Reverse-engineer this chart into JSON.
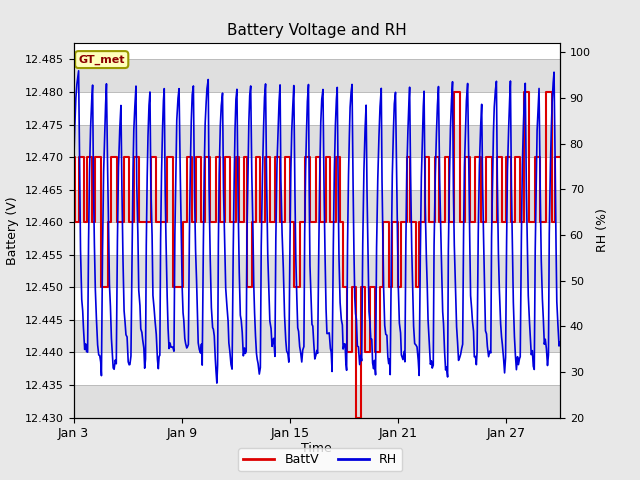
{
  "title": "Battery Voltage and RH",
  "xlabel": "Time",
  "ylabel_left": "Battery (V)",
  "ylabel_right": "RH (%)",
  "annotation_text": "GT_met",
  "xlim_start": 0,
  "xlim_end": 27,
  "ylim_left": [
    12.43,
    12.4875
  ],
  "ylim_right": [
    20,
    102
  ],
  "xtick_positions": [
    0,
    6,
    12,
    18,
    24
  ],
  "xtick_labels": [
    "Jan 3",
    "Jan 9",
    "Jan 15",
    "Jan 21",
    "Jan 27"
  ],
  "ytick_left": [
    12.43,
    12.435,
    12.44,
    12.445,
    12.45,
    12.455,
    12.46,
    12.465,
    12.47,
    12.475,
    12.48,
    12.485
  ],
  "ytick_right": [
    20,
    30,
    40,
    50,
    60,
    70,
    80,
    90,
    100
  ],
  "bg_color": "#e8e8e8",
  "plot_bg_color": "#ffffff",
  "grid_color": "#bbbbbb",
  "band_color": "#d8d8d8",
  "batt_color": "#dd0000",
  "rh_color": "#0000dd",
  "legend_batt": "BattV",
  "legend_rh": "RH",
  "figsize": [
    6.4,
    4.8
  ],
  "dpi": 100,
  "batt_data": [
    [
      0.0,
      12.47
    ],
    [
      0.05,
      12.47
    ],
    [
      0.05,
      12.46
    ],
    [
      0.3,
      12.46
    ],
    [
      0.3,
      12.47
    ],
    [
      0.55,
      12.47
    ],
    [
      0.55,
      12.46
    ],
    [
      0.75,
      12.46
    ],
    [
      0.75,
      12.47
    ],
    [
      1.0,
      12.47
    ],
    [
      1.0,
      12.46
    ],
    [
      1.2,
      12.46
    ],
    [
      1.2,
      12.47
    ],
    [
      1.5,
      12.47
    ],
    [
      1.5,
      12.45
    ],
    [
      1.9,
      12.45
    ],
    [
      1.9,
      12.46
    ],
    [
      2.1,
      12.46
    ],
    [
      2.1,
      12.47
    ],
    [
      2.4,
      12.47
    ],
    [
      2.4,
      12.46
    ],
    [
      2.8,
      12.46
    ],
    [
      2.8,
      12.47
    ],
    [
      3.05,
      12.47
    ],
    [
      3.05,
      12.46
    ],
    [
      3.35,
      12.46
    ],
    [
      3.35,
      12.47
    ],
    [
      3.65,
      12.47
    ],
    [
      3.65,
      12.46
    ],
    [
      4.3,
      12.46
    ],
    [
      4.3,
      12.47
    ],
    [
      4.6,
      12.47
    ],
    [
      4.6,
      12.46
    ],
    [
      5.2,
      12.46
    ],
    [
      5.2,
      12.47
    ],
    [
      5.5,
      12.47
    ],
    [
      5.5,
      12.45
    ],
    [
      6.1,
      12.45
    ],
    [
      6.1,
      12.46
    ],
    [
      6.3,
      12.46
    ],
    [
      6.3,
      12.47
    ],
    [
      6.55,
      12.47
    ],
    [
      6.55,
      12.46
    ],
    [
      6.8,
      12.46
    ],
    [
      6.8,
      12.47
    ],
    [
      7.05,
      12.47
    ],
    [
      7.05,
      12.46
    ],
    [
      7.3,
      12.46
    ],
    [
      7.3,
      12.47
    ],
    [
      7.55,
      12.47
    ],
    [
      7.55,
      12.46
    ],
    [
      7.9,
      12.46
    ],
    [
      7.9,
      12.47
    ],
    [
      8.15,
      12.47
    ],
    [
      8.15,
      12.46
    ],
    [
      8.4,
      12.46
    ],
    [
      8.4,
      12.47
    ],
    [
      8.7,
      12.47
    ],
    [
      8.7,
      12.46
    ],
    [
      9.0,
      12.46
    ],
    [
      9.0,
      12.47
    ],
    [
      9.2,
      12.47
    ],
    [
      9.2,
      12.46
    ],
    [
      9.45,
      12.46
    ],
    [
      9.45,
      12.47
    ],
    [
      9.65,
      12.47
    ],
    [
      9.65,
      12.45
    ],
    [
      9.9,
      12.45
    ],
    [
      9.9,
      12.46
    ],
    [
      10.1,
      12.46
    ],
    [
      10.1,
      12.47
    ],
    [
      10.35,
      12.47
    ],
    [
      10.35,
      12.46
    ],
    [
      10.65,
      12.46
    ],
    [
      10.65,
      12.47
    ],
    [
      10.9,
      12.47
    ],
    [
      10.9,
      12.46
    ],
    [
      11.2,
      12.46
    ],
    [
      11.2,
      12.47
    ],
    [
      11.45,
      12.47
    ],
    [
      11.45,
      12.46
    ],
    [
      11.75,
      12.46
    ],
    [
      11.75,
      12.47
    ],
    [
      12.0,
      12.47
    ],
    [
      12.0,
      12.46
    ],
    [
      12.25,
      12.46
    ],
    [
      12.25,
      12.45
    ],
    [
      12.55,
      12.45
    ],
    [
      12.55,
      12.46
    ],
    [
      12.85,
      12.46
    ],
    [
      12.85,
      12.47
    ],
    [
      13.1,
      12.47
    ],
    [
      13.1,
      12.46
    ],
    [
      13.45,
      12.46
    ],
    [
      13.45,
      12.47
    ],
    [
      13.7,
      12.47
    ],
    [
      13.7,
      12.46
    ],
    [
      14.0,
      12.46
    ],
    [
      14.0,
      12.47
    ],
    [
      14.25,
      12.47
    ],
    [
      14.25,
      12.46
    ],
    [
      14.55,
      12.46
    ],
    [
      14.55,
      12.47
    ],
    [
      14.8,
      12.47
    ],
    [
      14.8,
      12.46
    ],
    [
      14.95,
      12.46
    ],
    [
      14.95,
      12.45
    ],
    [
      15.15,
      12.45
    ],
    [
      15.15,
      12.44
    ],
    [
      15.45,
      12.44
    ],
    [
      15.45,
      12.45
    ],
    [
      15.65,
      12.45
    ],
    [
      15.65,
      12.43
    ],
    [
      15.95,
      12.43
    ],
    [
      15.95,
      12.45
    ],
    [
      16.15,
      12.45
    ],
    [
      16.15,
      12.44
    ],
    [
      16.45,
      12.44
    ],
    [
      16.45,
      12.45
    ],
    [
      16.75,
      12.45
    ],
    [
      16.75,
      12.44
    ],
    [
      17.0,
      12.44
    ],
    [
      17.0,
      12.45
    ],
    [
      17.2,
      12.45
    ],
    [
      17.2,
      12.46
    ],
    [
      17.5,
      12.46
    ],
    [
      17.5,
      12.45
    ],
    [
      17.7,
      12.45
    ],
    [
      17.7,
      12.46
    ],
    [
      18.0,
      12.46
    ],
    [
      18.0,
      12.45
    ],
    [
      18.2,
      12.45
    ],
    [
      18.2,
      12.46
    ],
    [
      18.5,
      12.46
    ],
    [
      18.5,
      12.47
    ],
    [
      18.7,
      12.47
    ],
    [
      18.7,
      12.46
    ],
    [
      19.0,
      12.46
    ],
    [
      19.0,
      12.45
    ],
    [
      19.2,
      12.45
    ],
    [
      19.2,
      12.46
    ],
    [
      19.5,
      12.46
    ],
    [
      19.5,
      12.47
    ],
    [
      19.75,
      12.47
    ],
    [
      19.75,
      12.46
    ],
    [
      20.05,
      12.46
    ],
    [
      20.05,
      12.47
    ],
    [
      20.3,
      12.47
    ],
    [
      20.3,
      12.46
    ],
    [
      20.6,
      12.46
    ],
    [
      20.6,
      12.47
    ],
    [
      20.85,
      12.47
    ],
    [
      20.85,
      12.46
    ],
    [
      21.1,
      12.46
    ],
    [
      21.1,
      12.48
    ],
    [
      21.45,
      12.48
    ],
    [
      21.45,
      12.46
    ],
    [
      21.75,
      12.46
    ],
    [
      21.75,
      12.47
    ],
    [
      22.0,
      12.47
    ],
    [
      22.0,
      12.46
    ],
    [
      22.3,
      12.46
    ],
    [
      22.3,
      12.47
    ],
    [
      22.6,
      12.47
    ],
    [
      22.6,
      12.46
    ],
    [
      22.9,
      12.46
    ],
    [
      22.9,
      12.47
    ],
    [
      23.2,
      12.47
    ],
    [
      23.2,
      12.46
    ],
    [
      23.5,
      12.46
    ],
    [
      23.5,
      12.47
    ],
    [
      23.8,
      12.47
    ],
    [
      23.8,
      12.46
    ],
    [
      24.0,
      12.46
    ],
    [
      24.0,
      12.47
    ],
    [
      24.3,
      12.47
    ],
    [
      24.3,
      12.46
    ],
    [
      24.5,
      12.46
    ],
    [
      24.5,
      12.47
    ],
    [
      24.8,
      12.47
    ],
    [
      24.8,
      12.46
    ],
    [
      25.0,
      12.46
    ],
    [
      25.0,
      12.48
    ],
    [
      25.3,
      12.48
    ],
    [
      25.3,
      12.46
    ],
    [
      25.6,
      12.46
    ],
    [
      25.6,
      12.47
    ],
    [
      25.9,
      12.47
    ],
    [
      25.9,
      12.46
    ],
    [
      26.2,
      12.46
    ],
    [
      26.2,
      12.48
    ],
    [
      26.55,
      12.48
    ],
    [
      26.55,
      12.46
    ],
    [
      26.75,
      12.46
    ],
    [
      26.75,
      12.47
    ],
    [
      27.0,
      12.47
    ]
  ]
}
